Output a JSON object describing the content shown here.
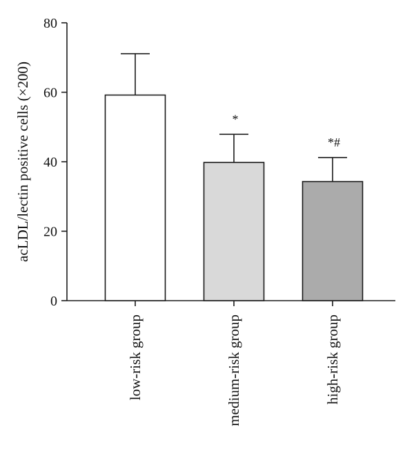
{
  "chart_data": {
    "type": "bar",
    "categories": [
      "low-risk group",
      "medium-risk group",
      "high-risk group"
    ],
    "values": [
      59.2,
      39.8,
      34.3
    ],
    "errors": [
      11.9,
      8.1,
      6.9
    ],
    "annotations": [
      "",
      "*",
      "*#"
    ],
    "colors": [
      "#ffffff",
      "#d9d9d9",
      "#ababab"
    ],
    "ylabel": "acLDL/lectin positive cells (×200)",
    "xlabel": "",
    "ylim": [
      0,
      80
    ],
    "yticks": [
      0,
      20,
      40,
      60,
      80
    ],
    "grid": false,
    "legend": "none"
  }
}
